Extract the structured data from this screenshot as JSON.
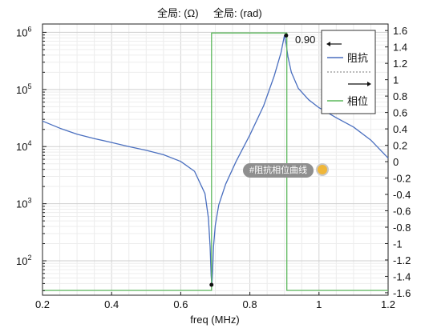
{
  "chart_data": {
    "type": "line",
    "title_left": "全局: (Ω)",
    "title_right": "全局: (rad)",
    "xlabel": "freq (MHz)",
    "xlim": [
      0.2,
      1.2
    ],
    "x_ticks": [
      "0.2",
      "0.4",
      "0.6",
      "0.8",
      "1",
      "1.2"
    ],
    "y_left": {
      "scale": "log",
      "range": [
        25,
        1400000
      ],
      "ticks": [
        2,
        3,
        4,
        5,
        6
      ]
    },
    "y_right": {
      "range": [
        -1.63,
        1.68
      ],
      "ticks": [
        "1.6",
        "1.4",
        "1.2",
        "1",
        "0.8",
        "0.6",
        "0.4",
        "0.2",
        "0",
        "-0.2",
        "-0.4",
        "-0.6",
        "-0.8",
        "-1",
        "-1.2",
        "-1.4",
        "-1.6"
      ]
    },
    "grid": true,
    "legend": {
      "position": "top-right",
      "entries": [
        "阻抗",
        "相位"
      ]
    },
    "series": [
      {
        "name": "阻抗",
        "axis": "left",
        "color": "#4a6fbf",
        "x": [
          0.2,
          0.25,
          0.3,
          0.35,
          0.4,
          0.45,
          0.5,
          0.55,
          0.6,
          0.64,
          0.67,
          0.68,
          0.685,
          0.688,
          0.69,
          0.692,
          0.695,
          0.7,
          0.71,
          0.73,
          0.76,
          0.8,
          0.84,
          0.87,
          0.89,
          0.9,
          0.905,
          0.91,
          0.92,
          0.94,
          0.97,
          1.0,
          1.05,
          1.1,
          1.15,
          1.2
        ],
        "y": [
          28000,
          21000,
          16500,
          13800,
          11800,
          10000,
          8600,
          7200,
          5500,
          3700,
          1500,
          560,
          180,
          55,
          38,
          65,
          180,
          420,
          950,
          2200,
          5500,
          16000,
          52000,
          170000,
          440000,
          880000,
          620000,
          380000,
          200000,
          105000,
          66000,
          48000,
          32000,
          22000,
          13000,
          6300
        ]
      },
      {
        "name": "相位",
        "axis": "right",
        "color": "#5cb85c",
        "x": [
          0.2,
          0.689,
          0.689,
          0.907,
          0.907,
          1.2
        ],
        "y": [
          -1.571,
          -1.571,
          1.571,
          1.571,
          -1.571,
          -1.571
        ]
      }
    ],
    "annotations": [
      {
        "text": "0.90",
        "x": 0.905,
        "axis": "right",
        "y": 1.571
      },
      {
        "text": "#阻抗相位曲线"
      }
    ],
    "markers": [
      {
        "x": 0.689,
        "axis": "left",
        "y": 38
      },
      {
        "x": 0.905,
        "axis": "left",
        "y": 880000
      }
    ]
  }
}
